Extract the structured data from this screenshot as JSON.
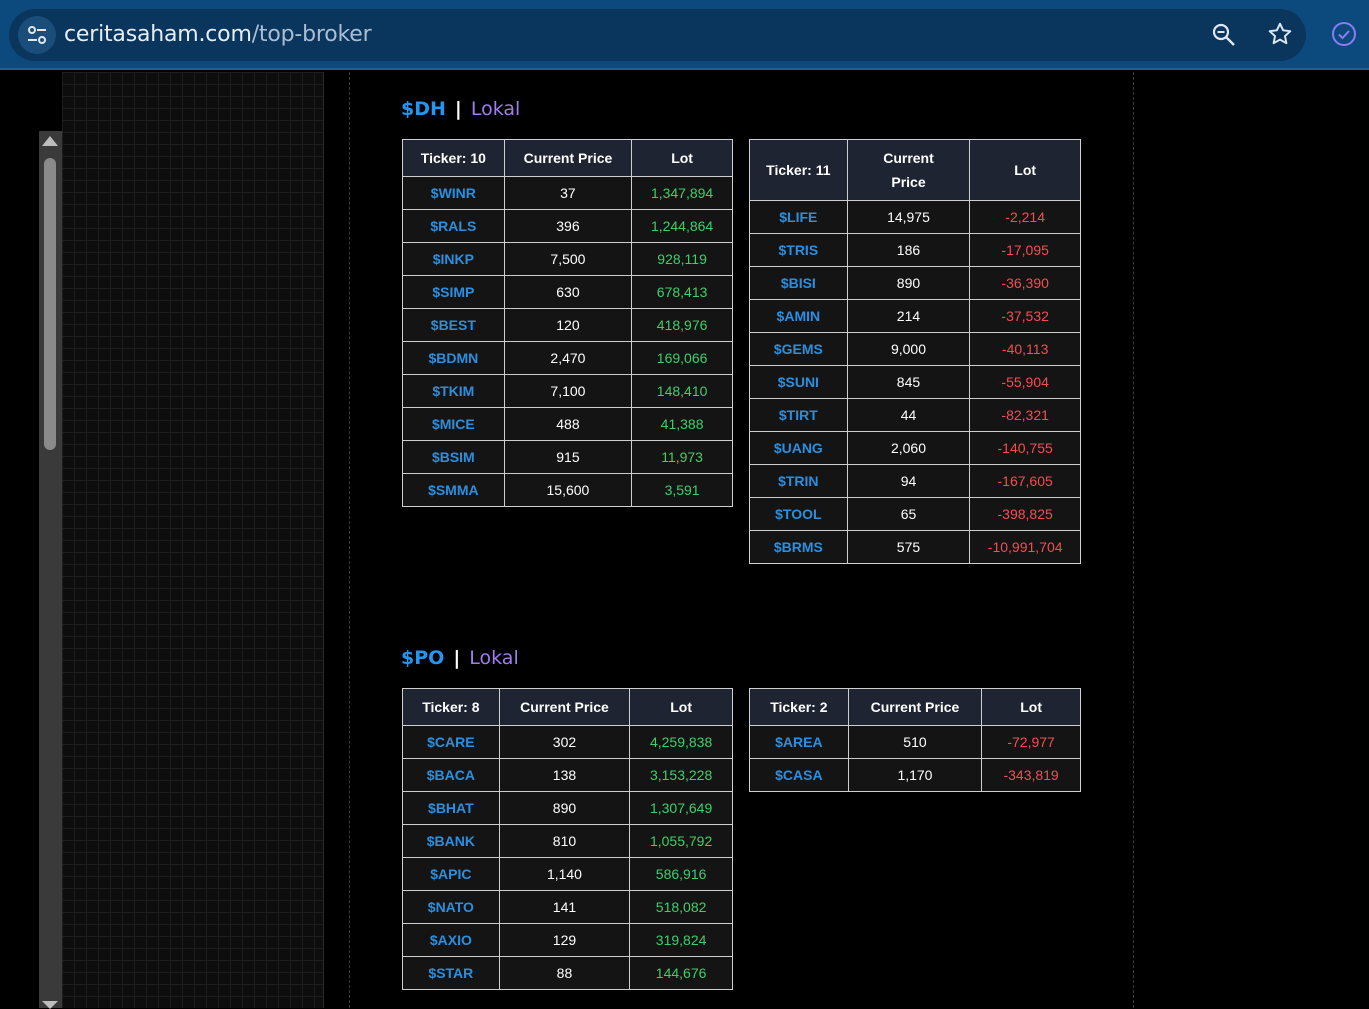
{
  "browser": {
    "url_domain": "ceritasaham.com",
    "url_path": "/top-broker"
  },
  "sections": [
    {
      "broker": "$DH",
      "separator": "|",
      "type": "Lokal",
      "buy_table": {
        "headers": [
          "Ticker: 10",
          "Current Price",
          "Lot"
        ],
        "rows": [
          [
            "$WINR",
            "37",
            "1,347,894"
          ],
          [
            "$RALS",
            "396",
            "1,244,864"
          ],
          [
            "$INKP",
            "7,500",
            "928,119"
          ],
          [
            "$SIMP",
            "630",
            "678,413"
          ],
          [
            "$BEST",
            "120",
            "418,976"
          ],
          [
            "$BDMN",
            "2,470",
            "169,066"
          ],
          [
            "$TKIM",
            "7,100",
            "148,410"
          ],
          [
            "$MICE",
            "488",
            "41,388"
          ],
          [
            "$BSIM",
            "915",
            "11,973"
          ],
          [
            "$SMMA",
            "15,600",
            "3,591"
          ]
        ]
      },
      "sell_table": {
        "headers": [
          "Ticker: 11",
          "Current Price",
          "Lot"
        ],
        "rows": [
          [
            "$LIFE",
            "14,975",
            "-2,214"
          ],
          [
            "$TRIS",
            "186",
            "-17,095"
          ],
          [
            "$BISI",
            "890",
            "-36,390"
          ],
          [
            "$AMIN",
            "214",
            "-37,532"
          ],
          [
            "$GEMS",
            "9,000",
            "-40,113"
          ],
          [
            "$SUNI",
            "845",
            "-55,904"
          ],
          [
            "$TIRT",
            "44",
            "-82,321"
          ],
          [
            "$UANG",
            "2,060",
            "-140,755"
          ],
          [
            "$TRIN",
            "94",
            "-167,605"
          ],
          [
            "$TOOL",
            "65",
            "-398,825"
          ],
          [
            "$BRMS",
            "575",
            "-10,991,704"
          ]
        ]
      }
    },
    {
      "broker": "$PO",
      "separator": "|",
      "type": "Lokal",
      "buy_table": {
        "headers": [
          "Ticker: 8",
          "Current Price",
          "Lot"
        ],
        "rows": [
          [
            "$CARE",
            "302",
            "4,259,838"
          ],
          [
            "$BACA",
            "138",
            "3,153,228"
          ],
          [
            "$BHAT",
            "890",
            "1,307,649"
          ],
          [
            "$BANK",
            "810",
            "1,055,792"
          ],
          [
            "$APIC",
            "1,140",
            "586,916"
          ],
          [
            "$NATO",
            "141",
            "518,082"
          ],
          [
            "$AXIO",
            "129",
            "319,824"
          ],
          [
            "$STAR",
            "88",
            "144,676"
          ]
        ]
      },
      "sell_table": {
        "headers": [
          "Ticker: 2",
          "Current Price",
          "Lot"
        ],
        "rows": [
          [
            "$AREA",
            "510",
            "-72,977"
          ],
          [
            "$CASA",
            "1,170",
            "-343,819"
          ]
        ]
      }
    }
  ],
  "colors": {
    "ticker": "#2b8fe0",
    "positive_lot": "#3ecf6b",
    "negative_lot": "#f05050",
    "broker_code": "#2196f3",
    "broker_type": "#a07cf0"
  }
}
